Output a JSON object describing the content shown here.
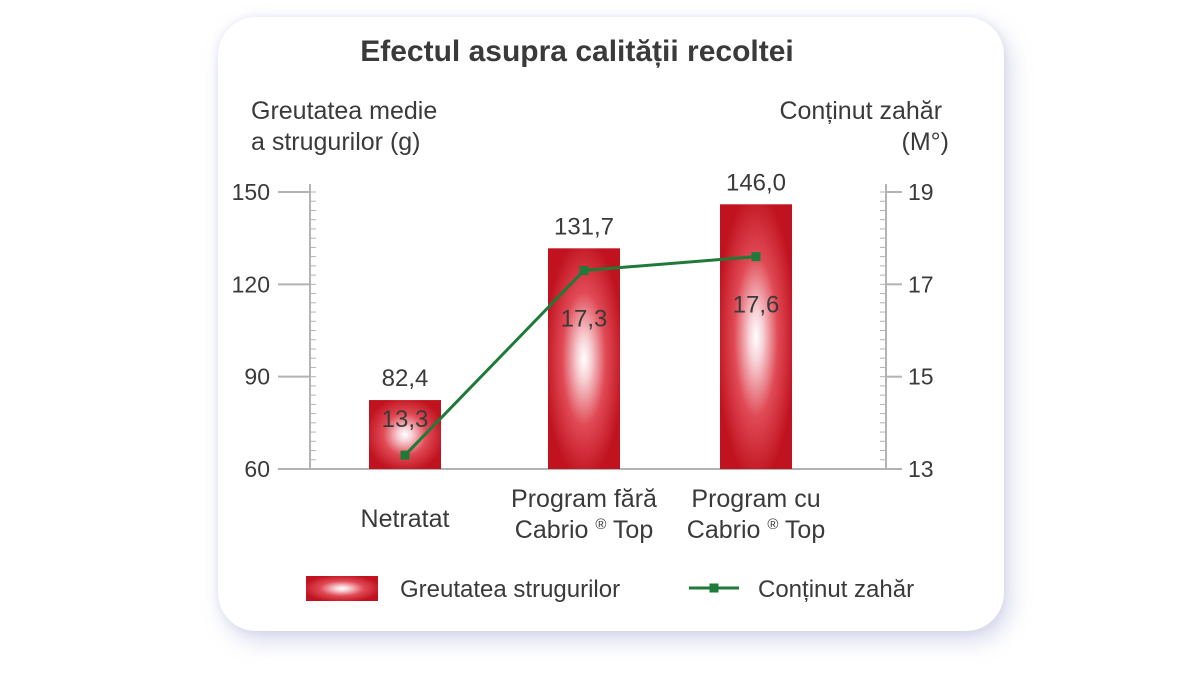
{
  "chart_data": {
    "type": "bar",
    "title": "Efectul asupra calității recoltei",
    "categories": [
      [
        "Netratat"
      ],
      [
        "Program fără",
        "Cabrio ® Top"
      ],
      [
        "Program cu",
        "Cabrio ® Top"
      ]
    ],
    "y_left": {
      "label_lines": [
        "Greutatea medie",
        "a strugurilor (g)"
      ],
      "range": [
        60,
        150
      ],
      "ticks": [
        60,
        90,
        120,
        150
      ]
    },
    "y_right": {
      "label_lines": [
        "Conținut zahăr",
        "(M°)"
      ],
      "range": [
        13,
        19
      ],
      "ticks": [
        13,
        15,
        17,
        19
      ]
    },
    "series": [
      {
        "name": "Greutatea strugurilor",
        "type": "bar",
        "axis": "left",
        "values": [
          82.4,
          131.7,
          146.0
        ],
        "labels": [
          "82,4",
          "131,7",
          "146,0"
        ],
        "color": "#c8102e"
      },
      {
        "name": "Conținut zahăr",
        "type": "line",
        "axis": "right",
        "values": [
          13.3,
          17.3,
          17.6
        ],
        "labels": [
          "13,3",
          "17,3",
          "17,6"
        ],
        "color": "#1f7a3a"
      }
    ],
    "legend_position": "bottom"
  }
}
